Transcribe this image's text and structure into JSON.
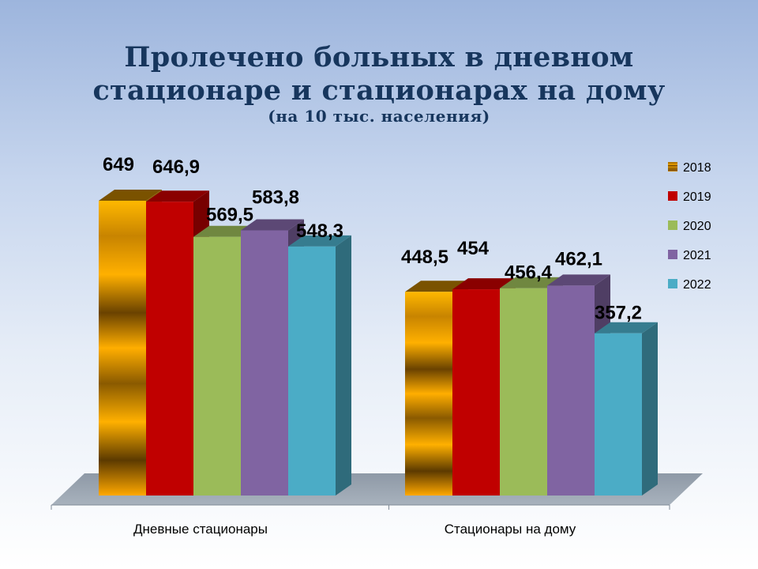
{
  "chart_data": {
    "type": "bar",
    "title_lines": [
      "Пролечено больных в дневном",
      "стационаре и стационарах на дому"
    ],
    "subtitle": "(на 10 тыс. населения)",
    "categories": [
      "Дневные стационары",
      "Стационары на дому"
    ],
    "series": [
      {
        "name": "2018",
        "values": [
          649,
          448.5
        ],
        "labels": [
          "649",
          "448,5"
        ],
        "color": "#e59b0a"
      },
      {
        "name": "2019",
        "values": [
          646.9,
          454
        ],
        "labels": [
          "646,9",
          "454"
        ],
        "color": "#c00000"
      },
      {
        "name": "2020",
        "values": [
          569.5,
          456.4
        ],
        "labels": [
          "569,5",
          "456,4"
        ],
        "color": "#9bbb59"
      },
      {
        "name": "2021",
        "values": [
          583.8,
          462.1
        ],
        "labels": [
          "583,8",
          "462,1"
        ],
        "color": "#8064a2"
      },
      {
        "name": "2022",
        "values": [
          548.3,
          357.2
        ],
        "labels": [
          "548,3",
          "357,2"
        ],
        "color": "#4bacc6"
      }
    ],
    "ylim": [
      0,
      700
    ],
    "grid": false,
    "legend_position": "right"
  }
}
